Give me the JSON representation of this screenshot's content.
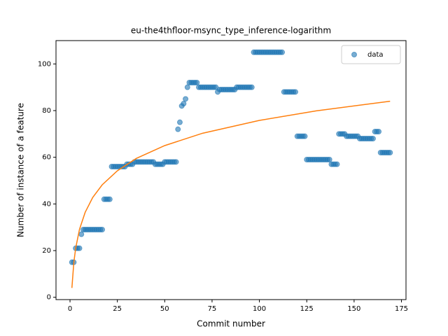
{
  "chart_data": {
    "type": "scatter",
    "title": "eu-the4thfloor-msync_type_inference-logarithm",
    "xlabel": "Commit number",
    "ylabel": "Number of instance of a feature",
    "xlim": [
      -7.4,
      177.4
    ],
    "ylim": [
      -1,
      110
    ],
    "xticks": [
      0,
      25,
      50,
      75,
      100,
      125,
      150,
      175
    ],
    "yticks": [
      0,
      20,
      40,
      60,
      80,
      100
    ],
    "legend": "upper right",
    "series": [
      {
        "name": "data",
        "type": "scatter",
        "color": "#1f77b4",
        "x": [
          1,
          2,
          3,
          4,
          5,
          6,
          7,
          8,
          9,
          10,
          11,
          12,
          13,
          14,
          15,
          16,
          17,
          18,
          19,
          20,
          21,
          22,
          23,
          24,
          25,
          26,
          27,
          28,
          29,
          30,
          31,
          32,
          33,
          34,
          35,
          36,
          37,
          38,
          39,
          40,
          41,
          42,
          43,
          44,
          45,
          46,
          47,
          48,
          49,
          50,
          51,
          52,
          53,
          54,
          55,
          56,
          57,
          58,
          59,
          60,
          61,
          62,
          63,
          64,
          65,
          66,
          67,
          68,
          69,
          70,
          71,
          72,
          73,
          74,
          75,
          76,
          77,
          78,
          79,
          80,
          81,
          82,
          83,
          84,
          85,
          86,
          87,
          88,
          89,
          90,
          91,
          92,
          93,
          94,
          95,
          96,
          97,
          98,
          99,
          100,
          101,
          102,
          103,
          104,
          105,
          106,
          107,
          108,
          109,
          110,
          111,
          112,
          113,
          114,
          115,
          116,
          117,
          118,
          119,
          120,
          121,
          122,
          123,
          124,
          125,
          126,
          127,
          128,
          129,
          130,
          131,
          132,
          133,
          134,
          135,
          136,
          137,
          138,
          139,
          140,
          141,
          142,
          143,
          144,
          145,
          146,
          147,
          148,
          149,
          150,
          151,
          152,
          153,
          154,
          155,
          156,
          157,
          158,
          159,
          160,
          161,
          162,
          163,
          164,
          165,
          166,
          167,
          168,
          169
        ],
        "values": [
          15,
          15,
          21,
          21,
          21,
          27,
          29,
          29,
          29,
          29,
          29,
          29,
          29,
          29,
          29,
          29,
          29,
          42,
          42,
          42,
          42,
          56,
          56,
          56,
          56,
          56,
          56,
          56,
          56,
          57,
          57,
          57,
          57,
          58,
          58,
          58,
          58,
          58,
          58,
          58,
          58,
          58,
          58,
          58,
          57,
          57,
          57,
          57,
          57,
          58,
          58,
          58,
          58,
          58,
          58,
          58,
          72,
          75,
          82,
          83,
          85,
          90,
          92,
          92,
          92,
          92,
          92,
          90,
          90,
          90,
          90,
          90,
          90,
          90,
          90,
          90,
          90,
          88,
          89,
          89,
          89,
          89,
          89,
          89,
          89,
          89,
          89,
          90,
          90,
          90,
          90,
          90,
          90,
          90,
          90,
          90,
          105,
          105,
          105,
          105,
          105,
          105,
          105,
          105,
          105,
          105,
          105,
          105,
          105,
          105,
          105,
          105,
          88,
          88,
          88,
          88,
          88,
          88,
          88,
          69,
          69,
          69,
          69,
          69,
          59,
          59,
          59,
          59,
          59,
          59,
          59,
          59,
          59,
          59,
          59,
          59,
          59,
          57,
          57,
          57,
          57,
          70,
          70,
          70,
          70,
          69,
          69,
          69,
          69,
          69,
          69,
          69,
          68,
          68,
          68,
          68,
          68,
          68,
          68,
          68,
          71,
          71,
          71,
          62,
          62,
          62,
          62,
          62,
          62
        ]
      },
      {
        "type": "line",
        "color": "#ff7f0e",
        "x": [
          1,
          2,
          3,
          5,
          8,
          12,
          17,
          25,
          35,
          50,
          70,
          100,
          130,
          169
        ],
        "values": [
          4,
          14.8,
          21.1,
          29.1,
          36.4,
          42.8,
          48.2,
          54.2,
          59.5,
          65.0,
          70.3,
          75.8,
          79.9,
          84.0
        ]
      }
    ]
  }
}
